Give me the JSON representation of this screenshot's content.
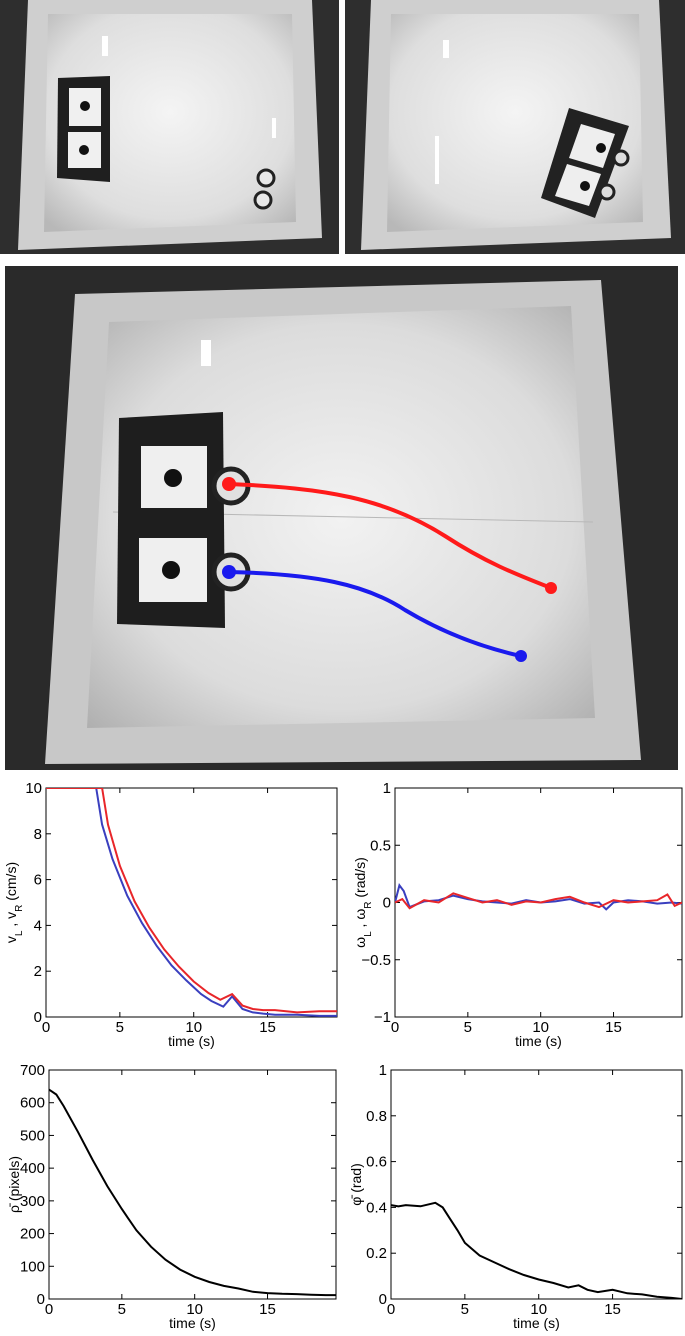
{
  "photos": {
    "top_left": {
      "scene": "arena-with-box-and-two-robots"
    },
    "top_right": {
      "scene": "arena-with-rotated-box"
    },
    "main": {
      "scene": "arena-trajectories",
      "colors": {
        "robot1": "#ff1a1a",
        "robot2": "#1a1aee"
      }
    }
  },
  "chart_data": [
    {
      "type": "line",
      "xlabel": "time (s)",
      "ylabel_parts": {
        "base1": "v",
        "sub1": "L",
        "sep": " , ",
        "base2": "v",
        "sub2": "R",
        "unit": " (cm/s)"
      },
      "xlim": [
        0,
        19.7
      ],
      "ylim": [
        0,
        10
      ],
      "xticks": [
        "0",
        "5",
        "10",
        "15"
      ],
      "yticks": [
        "0",
        "2",
        "4",
        "6",
        "8",
        "10"
      ],
      "series": [
        {
          "color": "#3a3fbf",
          "x": [
            0,
            3.4,
            3.8,
            4.5,
            5.5,
            6.5,
            7.5,
            8.5,
            9.5,
            10.5,
            11.2,
            12,
            12.6,
            13.3,
            14,
            14.7,
            15.5,
            17,
            18.5,
            19.7
          ],
          "y": [
            10,
            10,
            8.4,
            6.9,
            5.3,
            4.1,
            3.1,
            2.25,
            1.6,
            1.0,
            0.7,
            0.45,
            0.9,
            0.35,
            0.2,
            0.15,
            0.1,
            0.1,
            0.05,
            0.05
          ]
        },
        {
          "color": "#e8262a",
          "x": [
            0,
            3.8,
            4.2,
            5,
            6,
            7,
            8,
            9,
            10,
            11,
            11.8,
            12.6,
            13.3,
            14,
            14.7,
            15.5,
            17,
            18.5,
            19.7
          ],
          "y": [
            10,
            10,
            8.4,
            6.6,
            5.05,
            3.9,
            2.95,
            2.2,
            1.55,
            1.05,
            0.75,
            1.0,
            0.5,
            0.35,
            0.3,
            0.3,
            0.2,
            0.25,
            0.25
          ]
        }
      ]
    },
    {
      "type": "line",
      "xlabel": "time (s)",
      "ylabel_parts": {
        "base1": "ω",
        "sub1": "L",
        "sep": " , ",
        "base2": "ω",
        "sub2": "R",
        "unit": " (rad/s)"
      },
      "xlim": [
        0,
        19.7
      ],
      "ylim": [
        -1,
        1
      ],
      "xticks": [
        "0",
        "5",
        "10",
        "15"
      ],
      "yticks": [
        "−1",
        "−0.5",
        "0",
        "0.5",
        "1"
      ],
      "series": [
        {
          "color": "#3a3fbf",
          "x": [
            0,
            0.3,
            0.6,
            1,
            2,
            3,
            4,
            5,
            6,
            7,
            8,
            9,
            10,
            11,
            12,
            13,
            14,
            14.5,
            15,
            16,
            17,
            18,
            19,
            19.7
          ],
          "y": [
            0,
            0.15,
            0.1,
            -0.04,
            0.01,
            0.02,
            0.06,
            0.03,
            0.01,
            0.0,
            -0.01,
            0.02,
            0.0,
            0.01,
            0.03,
            -0.01,
            0.0,
            -0.06,
            0.0,
            0.02,
            0.01,
            -0.01,
            0.0,
            -0.01
          ]
        },
        {
          "color": "#e8262a",
          "x": [
            0,
            0.5,
            1,
            2,
            3,
            4,
            5,
            6,
            7,
            8,
            9,
            10,
            11,
            12,
            13,
            14,
            15,
            16,
            17,
            18,
            18.7,
            19.2,
            19.7
          ],
          "y": [
            0,
            0.03,
            -0.05,
            0.02,
            0.0,
            0.08,
            0.04,
            0.0,
            0.02,
            -0.02,
            0.01,
            0.0,
            0.03,
            0.05,
            0.0,
            -0.04,
            0.02,
            0.0,
            0.01,
            0.02,
            0.07,
            -0.03,
            0.0
          ]
        }
      ]
    },
    {
      "type": "line",
      "xlabel": "time (s)",
      "ylabel": "ρ̄ (pixels)",
      "xlim": [
        0,
        19.7
      ],
      "ylim": [
        0,
        700
      ],
      "xticks": [
        "0",
        "5",
        "10",
        "15"
      ],
      "yticks": [
        "0",
        "100",
        "200",
        "300",
        "400",
        "500",
        "600",
        "700"
      ],
      "series": [
        {
          "color": "#000000",
          "x": [
            0,
            0.5,
            1,
            2,
            3,
            4,
            5,
            6,
            7,
            8,
            9,
            10,
            11,
            12,
            13,
            14,
            15,
            16,
            17,
            18,
            19,
            19.7
          ],
          "y": [
            640,
            625,
            590,
            510,
            425,
            345,
            275,
            210,
            160,
            120,
            90,
            68,
            52,
            40,
            32,
            22,
            18,
            16,
            15,
            13,
            12,
            12
          ]
        }
      ]
    },
    {
      "type": "line",
      "xlabel": "time (s)",
      "ylabel": "φ̄ (rad)",
      "xlim": [
        0,
        19.7
      ],
      "ylim": [
        0,
        1
      ],
      "xticks": [
        "0",
        "5",
        "10",
        "15"
      ],
      "yticks": [
        "0",
        "0.2",
        "0.4",
        "0.6",
        "0.8",
        "1"
      ],
      "series": [
        {
          "color": "#000000",
          "x": [
            0,
            0.5,
            1,
            2,
            3,
            3.5,
            4,
            4.5,
            5,
            6,
            7,
            8,
            9,
            10,
            11,
            12,
            12.7,
            13.3,
            14,
            15,
            16,
            17,
            18,
            19,
            19.7
          ],
          "y": [
            0.41,
            0.405,
            0.41,
            0.405,
            0.42,
            0.4,
            0.35,
            0.3,
            0.245,
            0.19,
            0.16,
            0.13,
            0.105,
            0.085,
            0.07,
            0.05,
            0.06,
            0.04,
            0.03,
            0.04,
            0.025,
            0.02,
            0.01,
            0.005,
            0.0
          ]
        }
      ]
    }
  ]
}
